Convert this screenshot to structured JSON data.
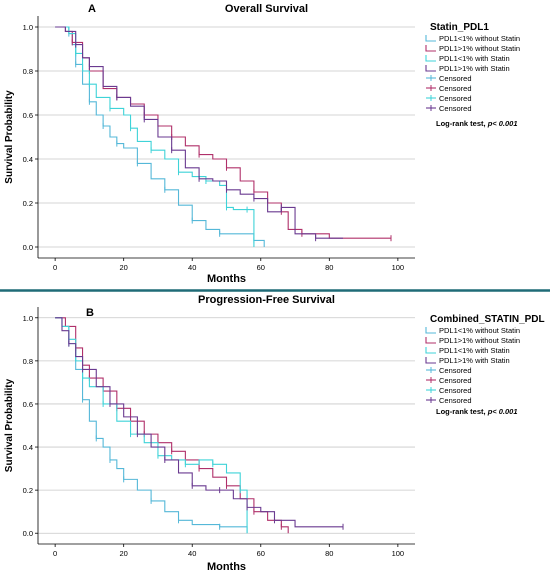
{
  "colors": {
    "without_low": "#55b8d8",
    "without_high": "#b0306a",
    "with_low": "#3fd3d8",
    "with_high": "#6a3a90",
    "separator": "#1f6b77",
    "grid": "#c8c8c8"
  },
  "chart_data": [
    {
      "type": "line",
      "panel_letter": "A",
      "title": "Overall Survival",
      "xlabel": "Months",
      "ylabel": "Survival Probability",
      "xlim": [
        -5,
        105
      ],
      "ylim": [
        -0.05,
        1.05
      ],
      "xticks": [
        0,
        20,
        40,
        60,
        80,
        100
      ],
      "yticks": [
        0.0,
        0.2,
        0.4,
        0.6,
        0.8,
        1.0
      ],
      "ytick_labels": [
        "0.0",
        "0.2",
        "0.4",
        "0.6",
        "0.8",
        "1.0"
      ],
      "grid": "horizontal",
      "legend": {
        "position": "right",
        "title": "Statin_PDL1",
        "entries": [
          "PDL1<1% without Statin",
          "PDL1>1% without Statin",
          "PDL1<1% with Statin",
          "PDL1>1% with Statin",
          "Censored",
          "Censored",
          "Censored",
          "Censored"
        ],
        "note_prefix": "Log-rank test, ",
        "note_value": "p< 0.001"
      },
      "series": [
        {
          "color": "without_low",
          "points": [
            [
              0,
              1
            ],
            [
              3,
              1
            ],
            [
              4,
              0.97
            ],
            [
              5,
              0.92
            ],
            [
              6,
              0.83
            ],
            [
              8,
              0.74
            ],
            [
              10,
              0.66
            ],
            [
              12,
              0.6
            ],
            [
              14,
              0.55
            ],
            [
              16,
              0.5
            ],
            [
              18,
              0.47
            ],
            [
              20,
              0.45
            ],
            [
              24,
              0.38
            ],
            [
              28,
              0.31
            ],
            [
              32,
              0.26
            ],
            [
              36,
              0.19
            ],
            [
              40,
              0.12
            ],
            [
              44,
              0.08
            ],
            [
              48,
              0.06
            ],
            [
              55,
              0.06
            ],
            [
              58,
              0.03
            ],
            [
              61,
              0.0
            ]
          ]
        },
        {
          "color": "without_high",
          "points": [
            [
              0,
              1
            ],
            [
              3,
              0.98
            ],
            [
              5,
              0.93
            ],
            [
              8,
              0.86
            ],
            [
              10,
              0.8
            ],
            [
              14,
              0.72
            ],
            [
              18,
              0.68
            ],
            [
              22,
              0.65
            ],
            [
              26,
              0.6
            ],
            [
              30,
              0.55
            ],
            [
              34,
              0.5
            ],
            [
              38,
              0.46
            ],
            [
              42,
              0.42
            ],
            [
              46,
              0.4
            ],
            [
              50,
              0.36
            ],
            [
              54,
              0.3
            ],
            [
              58,
              0.25
            ],
            [
              62,
              0.2
            ],
            [
              66,
              0.16
            ],
            [
              68,
              0.08
            ],
            [
              72,
              0.06
            ],
            [
              80,
              0.04
            ],
            [
              98,
              0.04
            ]
          ]
        },
        {
          "color": "with_low",
          "points": [
            [
              0,
              1
            ],
            [
              4,
              0.97
            ],
            [
              6,
              0.88
            ],
            [
              8,
              0.8
            ],
            [
              10,
              0.74
            ],
            [
              12,
              0.68
            ],
            [
              16,
              0.63
            ],
            [
              20,
              0.6
            ],
            [
              22,
              0.54
            ],
            [
              24,
              0.48
            ],
            [
              28,
              0.44
            ],
            [
              32,
              0.4
            ],
            [
              36,
              0.34
            ],
            [
              40,
              0.32
            ],
            [
              44,
              0.3
            ],
            [
              48,
              0.28
            ],
            [
              50,
              0.18
            ],
            [
              52,
              0.17
            ],
            [
              56,
              0.17
            ],
            [
              58,
              0.0
            ]
          ]
        },
        {
          "color": "with_high",
          "points": [
            [
              0,
              1
            ],
            [
              3,
              0.98
            ],
            [
              6,
              0.92
            ],
            [
              8,
              0.86
            ],
            [
              10,
              0.82
            ],
            [
              14,
              0.73
            ],
            [
              18,
              0.68
            ],
            [
              22,
              0.64
            ],
            [
              26,
              0.58
            ],
            [
              30,
              0.5
            ],
            [
              34,
              0.44
            ],
            [
              38,
              0.36
            ],
            [
              42,
              0.31
            ],
            [
              46,
              0.3
            ],
            [
              50,
              0.26
            ],
            [
              54,
              0.24
            ],
            [
              58,
              0.22
            ],
            [
              62,
              0.16
            ],
            [
              66,
              0.18
            ],
            [
              70,
              0.06
            ],
            [
              76,
              0.04
            ],
            [
              84,
              0.04
            ]
          ]
        }
      ]
    },
    {
      "type": "line",
      "panel_letter": "B",
      "title": "Progression-Free Survival",
      "xlabel": "Months",
      "ylabel": "Survival Probability",
      "xlim": [
        -5,
        105
      ],
      "ylim": [
        -0.05,
        1.05
      ],
      "xticks": [
        0,
        20,
        40,
        60,
        80,
        100
      ],
      "yticks": [
        0.0,
        0.2,
        0.4,
        0.6,
        0.8,
        1.0
      ],
      "ytick_labels": [
        "0.0",
        "0.2",
        "0.4",
        "0.6",
        "0.8",
        "1.0"
      ],
      "grid": "horizontal",
      "legend": {
        "position": "right",
        "title": "Combined_STATIN_PDL",
        "entries": [
          "PDL1<1% without Statin",
          "PDL1>1% without Statin",
          "PDL1<1% with Statin",
          "PDL1>1% with Statin",
          "Censored",
          "Censored",
          "Censored",
          "Censored"
        ],
        "note_prefix": "Log-rank test, ",
        "note_value": "p< 0.001"
      },
      "series": [
        {
          "color": "without_low",
          "points": [
            [
              0,
              1
            ],
            [
              2,
              0.96
            ],
            [
              4,
              0.88
            ],
            [
              6,
              0.76
            ],
            [
              8,
              0.62
            ],
            [
              10,
              0.52
            ],
            [
              12,
              0.44
            ],
            [
              14,
              0.4
            ],
            [
              16,
              0.34
            ],
            [
              18,
              0.3
            ],
            [
              20,
              0.25
            ],
            [
              24,
              0.2
            ],
            [
              28,
              0.15
            ],
            [
              32,
              0.1
            ],
            [
              36,
              0.06
            ],
            [
              40,
              0.04
            ],
            [
              48,
              0.03
            ],
            [
              56,
              0.0
            ]
          ]
        },
        {
          "color": "without_high",
          "points": [
            [
              0,
              1
            ],
            [
              3,
              0.96
            ],
            [
              6,
              0.86
            ],
            [
              8,
              0.78
            ],
            [
              10,
              0.72
            ],
            [
              14,
              0.66
            ],
            [
              18,
              0.58
            ],
            [
              22,
              0.52
            ],
            [
              26,
              0.46
            ],
            [
              30,
              0.42
            ],
            [
              34,
              0.38
            ],
            [
              38,
              0.34
            ],
            [
              42,
              0.3
            ],
            [
              46,
              0.26
            ],
            [
              50,
              0.22
            ],
            [
              54,
              0.16
            ],
            [
              58,
              0.1
            ],
            [
              62,
              0.06
            ],
            [
              66,
              0.03
            ],
            [
              68,
              0.0
            ]
          ]
        },
        {
          "color": "with_low",
          "points": [
            [
              0,
              1
            ],
            [
              2,
              0.96
            ],
            [
              4,
              0.9
            ],
            [
              6,
              0.8
            ],
            [
              8,
              0.72
            ],
            [
              10,
              0.68
            ],
            [
              14,
              0.6
            ],
            [
              18,
              0.52
            ],
            [
              22,
              0.46
            ],
            [
              26,
              0.42
            ],
            [
              30,
              0.36
            ],
            [
              34,
              0.34
            ],
            [
              38,
              0.32
            ],
            [
              42,
              0.34
            ],
            [
              46,
              0.32
            ],
            [
              50,
              0.28
            ],
            [
              54,
              0.2
            ],
            [
              56,
              0.0
            ]
          ]
        },
        {
          "color": "with_high",
          "points": [
            [
              0,
              1
            ],
            [
              2,
              0.94
            ],
            [
              4,
              0.88
            ],
            [
              6,
              0.82
            ],
            [
              8,
              0.76
            ],
            [
              12,
              0.68
            ],
            [
              16,
              0.6
            ],
            [
              20,
              0.54
            ],
            [
              24,
              0.46
            ],
            [
              28,
              0.4
            ],
            [
              32,
              0.34
            ],
            [
              36,
              0.28
            ],
            [
              40,
              0.22
            ],
            [
              44,
              0.2
            ],
            [
              48,
              0.2
            ],
            [
              52,
              0.16
            ],
            [
              56,
              0.12
            ],
            [
              60,
              0.1
            ],
            [
              64,
              0.06
            ],
            [
              70,
              0.03
            ],
            [
              84,
              0.03
            ]
          ]
        }
      ]
    }
  ]
}
